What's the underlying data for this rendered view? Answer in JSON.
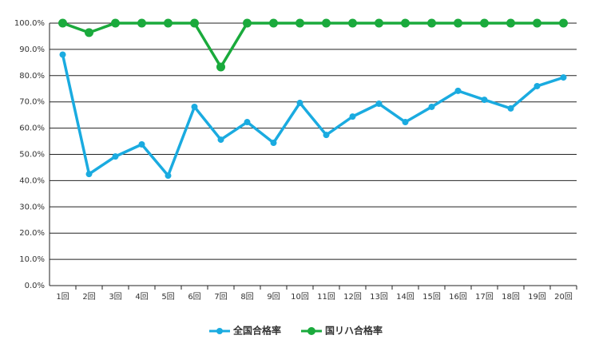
{
  "chart_data": {
    "type": "line",
    "categories": [
      "1回",
      "2回",
      "3回",
      "4回",
      "5回",
      "6回",
      "7回",
      "8回",
      "9回",
      "10回",
      "11回",
      "12回",
      "13回",
      "14回",
      "15回",
      "16回",
      "17回",
      "18回",
      "19回",
      "20回"
    ],
    "series": [
      {
        "name": "全国合格率",
        "color": "#1aabe0",
        "values": [
          88,
          42.5,
          49.2,
          53.8,
          41.9,
          68.1,
          55.6,
          62.3,
          54.4,
          69.6,
          57.4,
          64.4,
          69.3,
          62.3,
          68.1,
          74.2,
          70.8,
          67.5,
          76,
          79.3
        ]
      },
      {
        "name": "国リハ合格率",
        "color": "#1aaa3c",
        "values": [
          100,
          96.4,
          100,
          100,
          100,
          100,
          83.3,
          100,
          100,
          100,
          100,
          100,
          100,
          100,
          100,
          100,
          100,
          100,
          100,
          100
        ]
      }
    ],
    "ylim": [
      0,
      100
    ],
    "yticks": [
      {
        "value": 0,
        "label": "0.0%"
      },
      {
        "value": 10,
        "label": "10.0%"
      },
      {
        "value": 20,
        "label": "20.0%"
      },
      {
        "value": 30,
        "label": "30.0%"
      },
      {
        "value": 40,
        "label": "40.0%"
      },
      {
        "value": 50,
        "label": "50.0%"
      },
      {
        "value": 60,
        "label": "60.0%"
      },
      {
        "value": 70,
        "label": "70.0%"
      },
      {
        "value": 80,
        "label": "80.0%"
      },
      {
        "value": 90,
        "label": "90.0%"
      },
      {
        "value": 100,
        "label": "100.0%"
      }
    ],
    "grid": true,
    "legend": "bottom"
  }
}
